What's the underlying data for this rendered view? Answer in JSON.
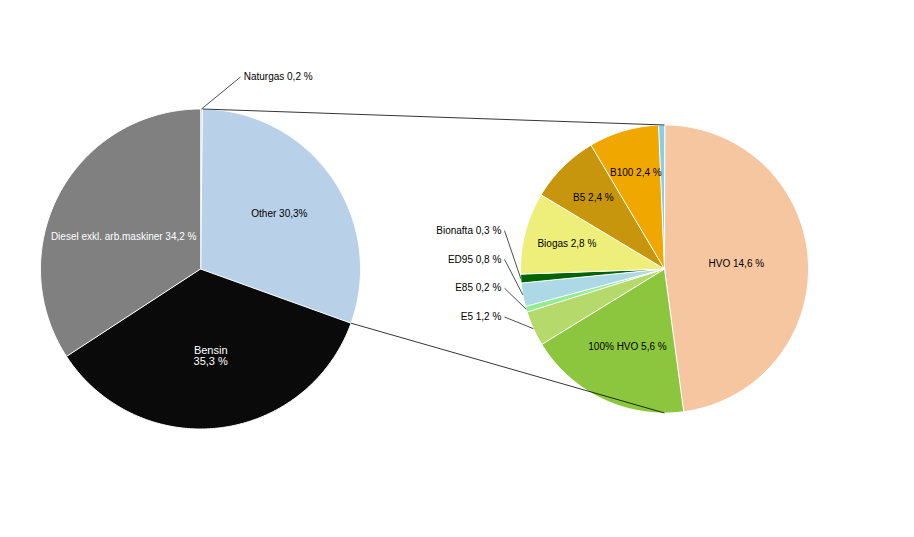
{
  "chart_data": [
    {
      "type": "pie",
      "categories": [
        "Naturgas 0,2 %",
        "Other 30,3%",
        "Bensin\n35,3 %",
        "Diesel exkl. arb.maskiner 34,2 %"
      ],
      "values": [
        0.2,
        30.3,
        35.3,
        34.2
      ],
      "colors": [
        "#b8d0e8",
        "#b8d0e8",
        "#0a0a0a",
        "#808080"
      ],
      "data_labels": true
    },
    {
      "type": "pie",
      "categories": [
        "HVO 14,6 %",
        "100% HVO 5,6 %",
        "E5 1,2 %",
        "E85 0,2 %",
        "ED95 0,8 %",
        "Bionafta 0,3 %",
        "Biogas 2,8 %",
        "B5 2,4 %",
        "B100 2,4 %",
        null
      ],
      "values": [
        14.6,
        5.6,
        1.2,
        0.2,
        0.8,
        0.3,
        2.8,
        2.4,
        2.4,
        0.2
      ],
      "colors": [
        "#f5c6a0",
        "#8cc63f",
        "#b5d96b",
        "#90ee90",
        "#add8e6",
        "#006400",
        "#eeef7a",
        "#c8960c",
        "#f0a800",
        "#87ceeb"
      ],
      "data_labels": true
    }
  ]
}
